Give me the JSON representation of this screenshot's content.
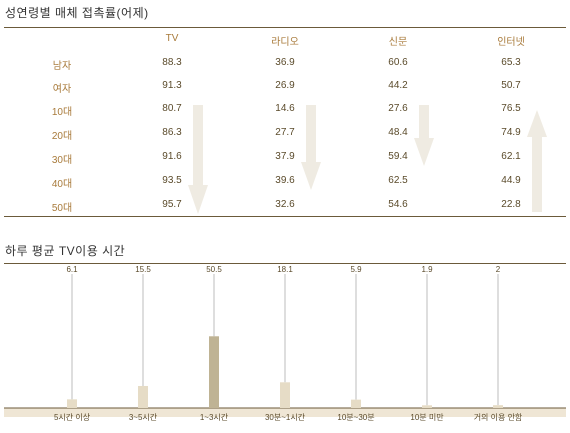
{
  "table": {
    "title": "성연령별 매체 접촉률(어제)",
    "columns": [
      "TV",
      "라디오",
      "신문",
      "인터넷"
    ],
    "rows": [
      {
        "label": "남자",
        "values": [
          "88.3",
          "36.9",
          "60.6",
          "65.3"
        ]
      },
      {
        "label": "여자",
        "values": [
          "91.3",
          "26.9",
          "44.2",
          "50.7"
        ]
      },
      {
        "label": "10대",
        "values": [
          "80.7",
          "14.6",
          "27.6",
          "76.5"
        ]
      },
      {
        "label": "20대",
        "values": [
          "86.3",
          "27.7",
          "48.4",
          "74.9"
        ]
      },
      {
        "label": "30대",
        "values": [
          "91.6",
          "37.9",
          "59.4",
          "62.1"
        ]
      },
      {
        "label": "40대",
        "values": [
          "93.5",
          "39.6",
          "62.5",
          "44.9"
        ]
      },
      {
        "label": "50대",
        "values": [
          "95.7",
          "32.6",
          "54.6",
          "22.8"
        ]
      }
    ],
    "arrows": [
      {
        "column": "TV",
        "direction": "down"
      },
      {
        "column": "라디오",
        "direction": "down"
      },
      {
        "column": "신문",
        "direction": "down"
      },
      {
        "column": "인터넷",
        "direction": "up"
      }
    ],
    "arrow_color": "#efebe2"
  },
  "chart_data": {
    "type": "bar",
    "title": "하루 평균 TV이용 시간",
    "categories": [
      "5시간 이상",
      "3~5시간",
      "1~3시간",
      "30분~1시간",
      "10분~30분",
      "10분 미만",
      "거의 이용 안함"
    ],
    "values": [
      6.1,
      15.5,
      50.5,
      18.1,
      5.9,
      1.9,
      2
    ],
    "value_labels": [
      "6.1",
      "15.5",
      "50.5",
      "18.1",
      "5.9",
      "1.9",
      "2"
    ],
    "ylim": [
      0,
      100
    ],
    "highlight_index": 2,
    "colors": {
      "bar": "#e6dcc6",
      "highlight": "#bfb394",
      "baseline_band": "#efe6d5",
      "axis": "#6b5a3a",
      "leader": "#bdbdbd"
    }
  }
}
